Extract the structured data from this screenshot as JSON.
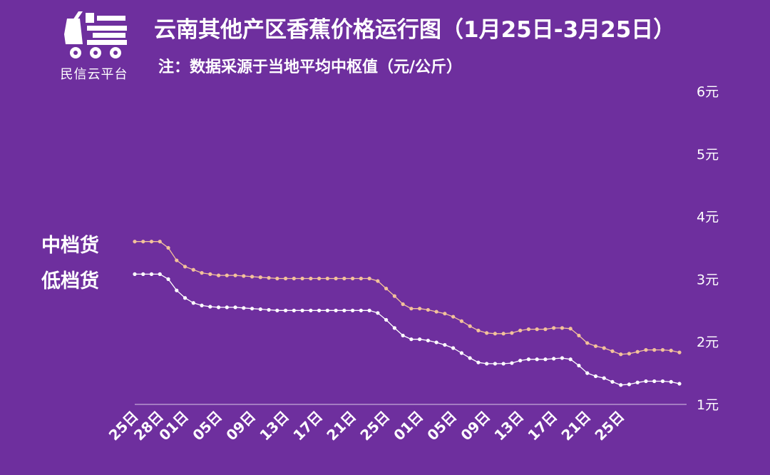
{
  "brand": {
    "name": "民信云平台",
    "logo_icon": "truck-icon"
  },
  "header": {
    "title": "云南其他产区香蕉价格运行图（1月25日-3月25日）",
    "subtitle": "注：数据采源于当地平均中枢值（元/公斤）"
  },
  "colors": {
    "background": "#6e2f9e",
    "mid_series": "#f3c29a",
    "low_series": "#ffffff"
  },
  "chart_data": {
    "type": "line",
    "title": "云南其他产区香蕉价格运行图（1月25日-3月25日）",
    "ylabel": "元/公斤",
    "ylim": [
      1,
      6
    ],
    "yticks": [
      "1元",
      "2元",
      "3元",
      "4元",
      "5元",
      "6元"
    ],
    "xtick_labels": [
      "25日",
      "28日",
      "01日",
      "05日",
      "09日",
      "13日",
      "17日",
      "21日",
      "25日",
      "01日",
      "05日",
      "09日",
      "13日",
      "17日",
      "21日",
      "25日"
    ],
    "xtick_index": [
      0,
      3,
      6,
      10,
      14,
      18,
      22,
      26,
      30,
      34,
      38,
      42,
      46,
      50,
      54,
      58
    ],
    "grid": false,
    "series": [
      {
        "name": "中档货",
        "values": [
          3.6,
          3.6,
          3.6,
          3.6,
          3.5,
          3.3,
          3.2,
          3.15,
          3.1,
          3.08,
          3.06,
          3.06,
          3.06,
          3.05,
          3.04,
          3.03,
          3.02,
          3.01,
          3.01,
          3.01,
          3.01,
          3.01,
          3.01,
          3.01,
          3.01,
          3.01,
          3.01,
          3.01,
          3.01,
          2.97,
          2.85,
          2.73,
          2.6,
          2.53,
          2.53,
          2.51,
          2.48,
          2.45,
          2.4,
          2.33,
          2.25,
          2.18,
          2.14,
          2.13,
          2.13,
          2.14,
          2.18,
          2.2,
          2.2,
          2.2,
          2.22,
          2.22,
          2.21,
          2.1,
          1.98,
          1.93,
          1.9,
          1.85,
          1.8,
          1.81,
          1.84,
          1.87,
          1.87,
          1.87,
          1.86,
          1.83
        ]
      },
      {
        "name": "低档货",
        "values": [
          3.08,
          3.08,
          3.08,
          3.08,
          3.0,
          2.82,
          2.7,
          2.62,
          2.58,
          2.56,
          2.55,
          2.55,
          2.55,
          2.54,
          2.53,
          2.52,
          2.51,
          2.5,
          2.5,
          2.5,
          2.5,
          2.5,
          2.5,
          2.5,
          2.5,
          2.5,
          2.5,
          2.5,
          2.5,
          2.46,
          2.35,
          2.22,
          2.1,
          2.04,
          2.04,
          2.02,
          1.99,
          1.95,
          1.9,
          1.82,
          1.74,
          1.67,
          1.65,
          1.65,
          1.65,
          1.66,
          1.7,
          1.72,
          1.72,
          1.72,
          1.73,
          1.74,
          1.72,
          1.62,
          1.5,
          1.45,
          1.42,
          1.36,
          1.31,
          1.32,
          1.35,
          1.37,
          1.37,
          1.37,
          1.36,
          1.33
        ]
      }
    ]
  }
}
